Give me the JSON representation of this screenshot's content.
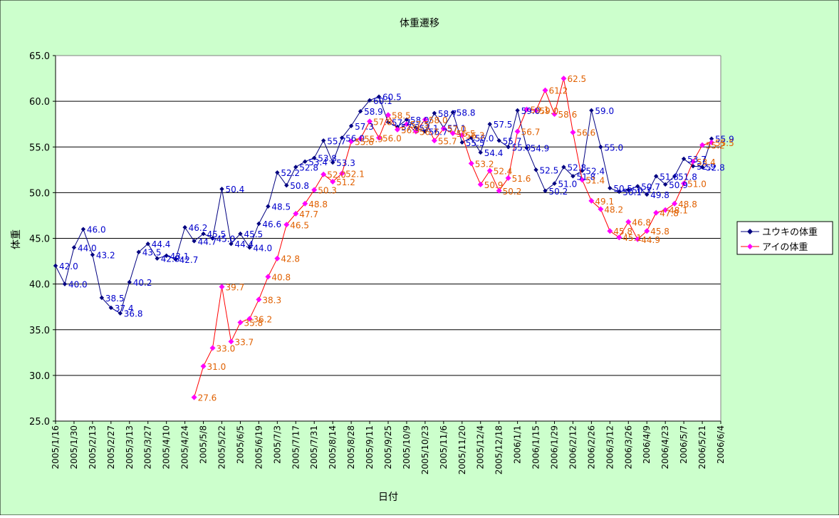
{
  "chart_data": {
    "type": "line",
    "title": "体重遷移",
    "xlabel": "日付",
    "ylabel": "体重",
    "ylim": [
      25,
      65
    ],
    "yticks": [
      "25.0",
      "30.0",
      "35.0",
      "40.0",
      "45.0",
      "50.0",
      "55.0",
      "60.0",
      "65.0"
    ],
    "x_range": [
      "2005/1/16",
      "2006/6/4"
    ],
    "x_ticks": [
      "2005/1/16",
      "2005/1/30",
      "2005/2/13",
      "2005/2/27",
      "2005/3/13",
      "2005/3/27",
      "2005/4/10",
      "2005/4/24",
      "2005/5/8",
      "2005/5/22",
      "2005/6/5",
      "2005/6/19",
      "2005/7/3",
      "2005/7/17",
      "2005/7/31",
      "2005/8/14",
      "2005/8/28",
      "2005/9/11",
      "2005/9/25",
      "2005/10/9",
      "2005/10/23",
      "2005/11/6",
      "2005/11/20",
      "2005/12/4",
      "2005/12/18",
      "2006/1/1",
      "2006/1/15",
      "2006/1/29",
      "2006/2/12",
      "2006/2/26",
      "2006/3/12",
      "2006/3/26",
      "2006/4/9",
      "2006/4/23",
      "2006/5/7",
      "2006/5/21",
      "2006/6/4"
    ],
    "grid": true,
    "legend_position": "right",
    "series": [
      {
        "name": "ユウキの体重",
        "color": "#000080",
        "marker_color": "#000080",
        "marker": "diamond",
        "label_color": "#0000cc",
        "points": [
          {
            "x": "2005/1/16",
            "y": 42.0,
            "label": "42.0"
          },
          {
            "x": "2005/1/23",
            "y": 40.0,
            "label": "40.0"
          },
          {
            "x": "2005/1/30",
            "y": 44.0,
            "label": "44.0"
          },
          {
            "x": "2005/2/6",
            "y": 46.0,
            "label": "46.0"
          },
          {
            "x": "2005/2/13",
            "y": 43.2,
            "label": "43.2"
          },
          {
            "x": "2005/2/20",
            "y": 38.5,
            "label": "38.5"
          },
          {
            "x": "2005/2/27",
            "y": 37.4,
            "label": "37.4"
          },
          {
            "x": "2005/3/6",
            "y": 36.8,
            "label": "36.8"
          },
          {
            "x": "2005/3/13",
            "y": 40.2,
            "label": "40.2"
          },
          {
            "x": "2005/3/20",
            "y": 43.5,
            "label": "43.5"
          },
          {
            "x": "2005/3/27",
            "y": 44.4,
            "label": "44.4"
          },
          {
            "x": "2005/4/3",
            "y": 42.8,
            "label": "42.8"
          },
          {
            "x": "2005/4/10",
            "y": 43.1,
            "label": "43.1"
          },
          {
            "x": "2005/4/17",
            "y": 42.7,
            "label": "42.7"
          },
          {
            "x": "2005/4/24",
            "y": 46.2,
            "label": "46.2"
          },
          {
            "x": "2005/5/1",
            "y": 44.7,
            "label": "44.7"
          },
          {
            "x": "2005/5/8",
            "y": 45.5,
            "label": "45.5"
          },
          {
            "x": "2005/5/15",
            "y": 45.0,
            "label": "45.0"
          },
          {
            "x": "2005/5/22",
            "y": 50.4,
            "label": "50.4"
          },
          {
            "x": "2005/5/29",
            "y": 44.4,
            "label": "44.4"
          },
          {
            "x": "2005/6/5",
            "y": 45.5,
            "label": "45.5"
          },
          {
            "x": "2005/6/12",
            "y": 44.0,
            "label": "44.0"
          },
          {
            "x": "2005/6/19",
            "y": 46.6,
            "label": "46.6"
          },
          {
            "x": "2005/6/26",
            "y": 48.5,
            "label": "48.5"
          },
          {
            "x": "2005/7/3",
            "y": 52.2,
            "label": "52.2"
          },
          {
            "x": "2005/7/10",
            "y": 50.8,
            "label": "50.8"
          },
          {
            "x": "2005/7/17",
            "y": 52.8,
            "label": "52.8"
          },
          {
            "x": "2005/7/24",
            "y": 53.4,
            "label": "53.4"
          },
          {
            "x": "2005/7/31",
            "y": 53.8,
            "label": "53.8"
          },
          {
            "x": "2005/8/7",
            "y": 55.7,
            "label": "55.7"
          },
          {
            "x": "2005/8/14",
            "y": 53.3,
            "label": "53.3"
          },
          {
            "x": "2005/8/21",
            "y": 56.0,
            "label": "56.0"
          },
          {
            "x": "2005/8/28",
            "y": 57.3,
            "label": "57.3"
          },
          {
            "x": "2005/9/4",
            "y": 58.9,
            "label": "58.9"
          },
          {
            "x": "2005/9/11",
            "y": 60.1,
            "label": "60.1"
          },
          {
            "x": "2005/9/18",
            "y": 60.5,
            "label": "60.5"
          },
          {
            "x": "2005/9/25",
            "y": 57.7,
            "label": "57.7"
          },
          {
            "x": "2005/10/2",
            "y": 57.2,
            "label": "57.2"
          },
          {
            "x": "2005/10/9",
            "y": 58.0,
            "label": "58.0"
          },
          {
            "x": "2005/10/16",
            "y": 57.1,
            "label": "57.1"
          },
          {
            "x": "2005/10/23",
            "y": 56.7,
            "label": "56.7"
          },
          {
            "x": "2005/10/30",
            "y": 58.7,
            "label": "58.7"
          },
          {
            "x": "2005/11/6",
            "y": 57.1,
            "label": "57.1"
          },
          {
            "x": "2005/11/13",
            "y": 58.8,
            "label": "58.8"
          },
          {
            "x": "2005/11/20",
            "y": 55.5,
            "label": "55.5"
          },
          {
            "x": "2005/11/27",
            "y": 56.0,
            "label": "56.0"
          },
          {
            "x": "2005/12/4",
            "y": 54.4,
            "label": "54.4"
          },
          {
            "x": "2005/12/11",
            "y": 57.5,
            "label": "57.5"
          },
          {
            "x": "2005/12/18",
            "y": 55.7,
            "label": "55.7"
          },
          {
            "x": "2005/12/25",
            "y": 55.0,
            "label": "55.0"
          },
          {
            "x": "2006/1/1",
            "y": 59.0,
            "label": "59.0"
          },
          {
            "x": "2006/1/8",
            "y": 54.9,
            "label": "54.9"
          },
          {
            "x": "2006/1/15",
            "y": 52.5,
            "label": "52.5"
          },
          {
            "x": "2006/1/22",
            "y": 50.2,
            "label": "50.2"
          },
          {
            "x": "2006/1/29",
            "y": 51.0,
            "label": "51.0"
          },
          {
            "x": "2006/2/5",
            "y": 52.8,
            "label": "52.8"
          },
          {
            "x": "2006/2/12",
            "y": 51.8,
            "label": "51.8"
          },
          {
            "x": "2006/2/19",
            "y": 52.4,
            "label": "52.4"
          },
          {
            "x": "2006/2/26",
            "y": 59.0,
            "label": "59.0"
          },
          {
            "x": "2006/3/5",
            "y": 55.0,
            "label": "55.0"
          },
          {
            "x": "2006/3/12",
            "y": 50.5,
            "label": "50.5"
          },
          {
            "x": "2006/3/19",
            "y": 50.1,
            "label": "50.1"
          },
          {
            "x": "2006/3/26",
            "y": 50.3,
            "label": "50.3"
          },
          {
            "x": "2006/4/2",
            "y": 50.7,
            "label": "50.7"
          },
          {
            "x": "2006/4/9",
            "y": 49.8,
            "label": "49.8"
          },
          {
            "x": "2006/4/16",
            "y": 51.8,
            "label": "51.8"
          },
          {
            "x": "2006/4/23",
            "y": 50.9,
            "label": "50.9"
          },
          {
            "x": "2006/4/30",
            "y": 51.8,
            "label": "51.8"
          },
          {
            "x": "2006/5/7",
            "y": 53.7,
            "label": "53.7"
          },
          {
            "x": "2006/5/14",
            "y": 52.9,
            "label": "52.9"
          },
          {
            "x": "2006/5/21",
            "y": 52.8,
            "label": "52.8"
          },
          {
            "x": "2006/5/28",
            "y": 55.9,
            "label": "55.9"
          }
        ]
      },
      {
        "name": "アイの体重",
        "color": "#ff0000",
        "marker_color": "#ff00ff",
        "marker": "diamond",
        "label_color": "#e06000",
        "points": [
          {
            "x": "2005/5/1",
            "y": 27.6,
            "label": "27.6"
          },
          {
            "x": "2005/5/8",
            "y": 31.0,
            "label": "31.0"
          },
          {
            "x": "2005/5/15",
            "y": 33.0,
            "label": "33.0"
          },
          {
            "x": "2005/5/22",
            "y": 39.7,
            "label": "39.7"
          },
          {
            "x": "2005/5/29",
            "y": 33.7,
            "label": "33.7"
          },
          {
            "x": "2005/6/5",
            "y": 35.8,
            "label": "35.8"
          },
          {
            "x": "2005/6/12",
            "y": 36.2,
            "label": "36.2"
          },
          {
            "x": "2005/6/19",
            "y": 38.3,
            "label": "38.3"
          },
          {
            "x": "2005/6/26",
            "y": 40.8,
            "label": "40.8"
          },
          {
            "x": "2005/7/3",
            "y": 42.8,
            "label": "42.8"
          },
          {
            "x": "2005/7/10",
            "y": 46.5,
            "label": "46.5"
          },
          {
            "x": "2005/7/17",
            "y": 47.7,
            "label": "47.7"
          },
          {
            "x": "2005/7/24",
            "y": 48.8,
            "label": "48.8"
          },
          {
            "x": "2005/7/31",
            "y": 50.3,
            "label": "50.3"
          },
          {
            "x": "2005/8/7",
            "y": 52.0,
            "label": "52.0"
          },
          {
            "x": "2005/8/14",
            "y": 51.2,
            "label": "51.2"
          },
          {
            "x": "2005/8/21",
            "y": 52.1,
            "label": "52.1"
          },
          {
            "x": "2005/8/28",
            "y": 55.6,
            "label": "55.6"
          },
          {
            "x": "2005/9/4",
            "y": 55.9,
            "label": "55.9"
          },
          {
            "x": "2005/9/11",
            "y": 57.8,
            "label": "57.8"
          },
          {
            "x": "2005/9/18",
            "y": 56.0,
            "label": "56.0"
          },
          {
            "x": "2005/9/25",
            "y": 58.5,
            "label": "58.5"
          },
          {
            "x": "2005/10/2",
            "y": 56.9,
            "label": "56.9"
          },
          {
            "x": "2005/10/9",
            "y": 57.5,
            "label": "57.5"
          },
          {
            "x": "2005/10/16",
            "y": 56.7,
            "label": "56.7"
          },
          {
            "x": "2005/10/23",
            "y": 58.0,
            "label": "58.0"
          },
          {
            "x": "2005/10/30",
            "y": 55.7,
            "label": "55.7"
          },
          {
            "x": "2005/11/6",
            "y": 57.0,
            "label": "57.0"
          },
          {
            "x": "2005/11/13",
            "y": 56.5,
            "label": "56.5"
          },
          {
            "x": "2005/11/20",
            "y": 56.3,
            "label": "56.3"
          },
          {
            "x": "2005/11/27",
            "y": 53.2,
            "label": "53.2"
          },
          {
            "x": "2005/12/4",
            "y": 50.9,
            "label": "50.9"
          },
          {
            "x": "2005/12/11",
            "y": 52.4,
            "label": "52.4"
          },
          {
            "x": "2005/12/18",
            "y": 50.2,
            "label": "50.2"
          },
          {
            "x": "2005/12/25",
            "y": 51.6,
            "label": "51.6"
          },
          {
            "x": "2006/1/1",
            "y": 56.7,
            "label": "56.7"
          },
          {
            "x": "2006/1/8",
            "y": 59.1,
            "label": "59.1"
          },
          {
            "x": "2006/1/15",
            "y": 59.0,
            "label": "59.0"
          },
          {
            "x": "2006/1/22",
            "y": 61.2,
            "label": "61.2"
          },
          {
            "x": "2006/1/29",
            "y": 58.6,
            "label": "58.6"
          },
          {
            "x": "2006/2/5",
            "y": 62.5,
            "label": "62.5"
          },
          {
            "x": "2006/2/12",
            "y": 56.6,
            "label": "56.6"
          },
          {
            "x": "2006/2/19",
            "y": 51.4,
            "label": "51.4"
          },
          {
            "x": "2006/2/26",
            "y": 49.1,
            "label": "49.1"
          },
          {
            "x": "2006/3/5",
            "y": 48.2,
            "label": "48.2"
          },
          {
            "x": "2006/3/12",
            "y": 45.8,
            "label": "45.8"
          },
          {
            "x": "2006/3/19",
            "y": 45.1,
            "label": "45.1"
          },
          {
            "x": "2006/3/26",
            "y": 46.8,
            "label": "46.8"
          },
          {
            "x": "2006/4/2",
            "y": 44.9,
            "label": "44.9"
          },
          {
            "x": "2006/4/9",
            "y": 45.8,
            "label": "45.8"
          },
          {
            "x": "2006/4/16",
            "y": 47.8,
            "label": "47.8"
          },
          {
            "x": "2006/4/23",
            "y": 48.1,
            "label": "48.1"
          },
          {
            "x": "2006/4/30",
            "y": 48.8,
            "label": "48.8"
          },
          {
            "x": "2006/5/7",
            "y": 51.0,
            "label": "51.0"
          },
          {
            "x": "2006/5/14",
            "y": 53.4,
            "label": "53.4"
          },
          {
            "x": "2006/5/21",
            "y": 55.2,
            "label": "55.2"
          },
          {
            "x": "2006/5/28",
            "y": 55.5,
            "label": "55.5"
          }
        ]
      }
    ]
  },
  "colors": {
    "chart_background": "#ccffcc",
    "plot_background": "#ffffff",
    "gridline": "#000000"
  }
}
